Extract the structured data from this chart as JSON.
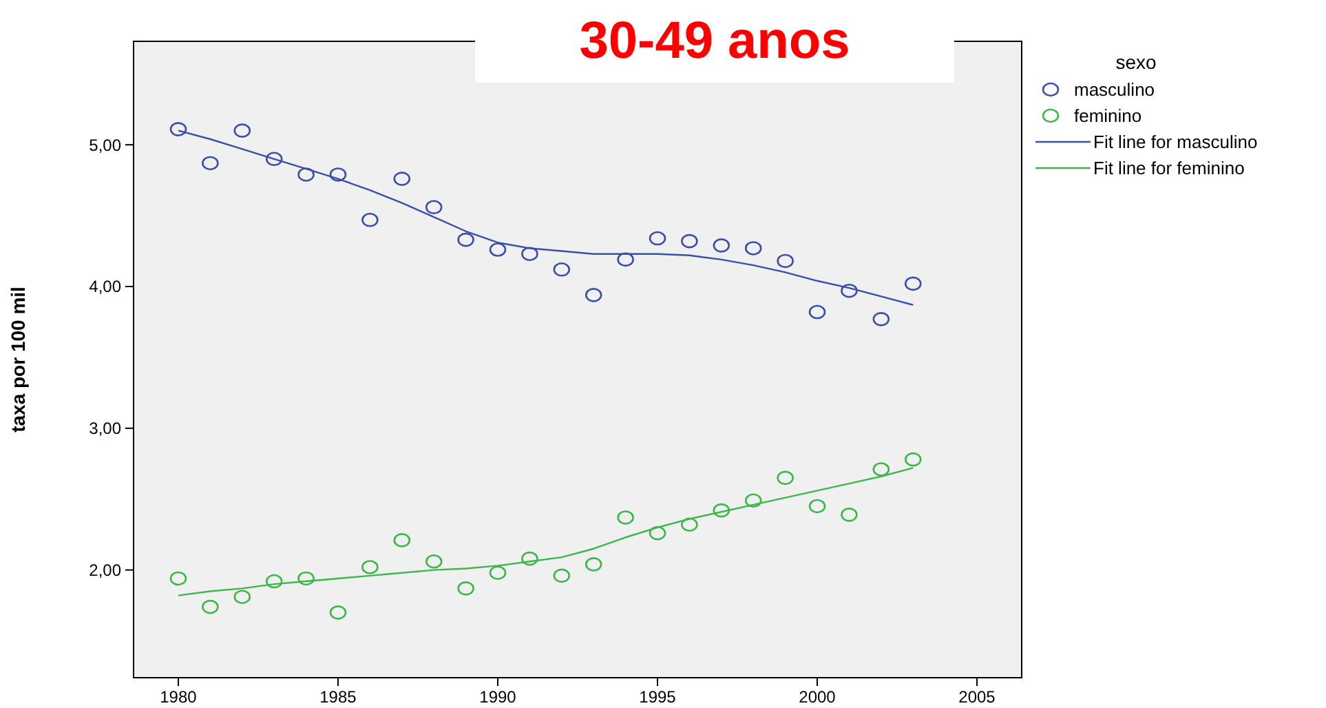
{
  "chart_data": {
    "type": "scatter",
    "title": "30-49 anos",
    "ylabel": "taxa por 100 mil",
    "legend_title": "sexo",
    "legend": "right",
    "grid": false,
    "x": [
      1980,
      1981,
      1982,
      1983,
      1984,
      1985,
      1986,
      1987,
      1988,
      1989,
      1990,
      1991,
      1992,
      1993,
      1994,
      1995,
      1996,
      1997,
      1998,
      1999,
      2000,
      2001,
      2002,
      2003
    ],
    "xlim": [
      1978.6,
      2006.4
    ],
    "xticks": [
      1980,
      1985,
      1990,
      1995,
      2000,
      2005
    ],
    "ylim": [
      1.24,
      5.73
    ],
    "yticks": [
      {
        "value": 2,
        "label": "2,00"
      },
      {
        "value": 3,
        "label": "3,00"
      },
      {
        "value": 4,
        "label": "4,00"
      },
      {
        "value": 5,
        "label": "5,00"
      }
    ],
    "series": [
      {
        "name": "masculino",
        "marker": "circle",
        "color": "#3a4fa8",
        "values": [
          5.11,
          4.87,
          5.1,
          4.9,
          4.79,
          4.79,
          4.47,
          4.76,
          4.56,
          4.33,
          4.26,
          4.23,
          4.12,
          3.94,
          4.19,
          4.34,
          4.32,
          4.29,
          4.27,
          4.18,
          3.82,
          3.97,
          3.77,
          4.02
        ]
      },
      {
        "name": "feminino",
        "marker": "circle",
        "color": "#3cb84a",
        "values": [
          1.94,
          1.74,
          1.81,
          1.92,
          1.94,
          1.7,
          2.02,
          2.21,
          2.06,
          1.87,
          1.98,
          2.08,
          1.96,
          2.04,
          2.37,
          2.26,
          2.32,
          2.42,
          2.49,
          2.65,
          2.45,
          2.39,
          2.71,
          2.78
        ]
      },
      {
        "name": "Fit line for masculino",
        "type": "line",
        "marker": "none",
        "color": "#3a4fa8",
        "values": [
          5.1,
          5.04,
          4.97,
          4.9,
          4.83,
          4.76,
          4.68,
          4.59,
          4.49,
          4.39,
          4.31,
          4.27,
          4.25,
          4.23,
          4.23,
          4.23,
          4.22,
          4.19,
          4.15,
          4.1,
          4.04,
          3.99,
          3.93,
          3.87
        ]
      },
      {
        "name": "Fit line for feminino",
        "type": "line",
        "marker": "none",
        "color": "#3cb84a",
        "values": [
          1.82,
          1.85,
          1.87,
          1.9,
          1.92,
          1.94,
          1.96,
          1.98,
          2.0,
          2.01,
          2.03,
          2.06,
          2.09,
          2.15,
          2.23,
          2.3,
          2.36,
          2.41,
          2.46,
          2.51,
          2.56,
          2.61,
          2.66,
          2.72
        ]
      }
    ]
  }
}
